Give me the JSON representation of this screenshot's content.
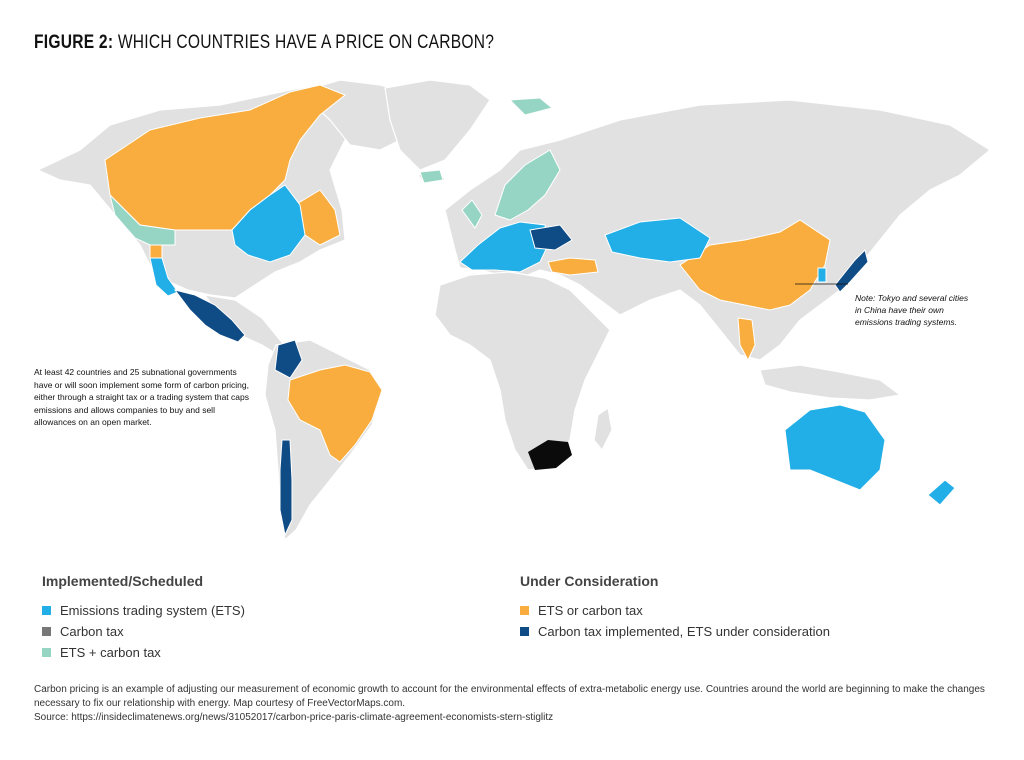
{
  "title": {
    "prefix": "FIGURE 2:",
    "text": "WHICH COUNTRIES HAVE A PRICE ON CARBON?"
  },
  "notes": {
    "right": "Note: Tokyo and several cities in China have their own emissions trading systems.",
    "left": "At least 42 countries and 25 subnational governments have or will soon implement some form of carbon pricing, either through a straight tax or a trading system that caps emissions and allows companies to buy and sell allowances on an open market."
  },
  "legend": {
    "implemented": {
      "heading": "Implemented/Scheduled",
      "items": [
        {
          "label": "Emissions trading system (ETS)",
          "color": "#22aee6"
        },
        {
          "label": "Carbon tax",
          "color": "#777777"
        },
        {
          "label": "ETS + carbon tax",
          "color": "#96d5c3"
        }
      ]
    },
    "consideration": {
      "heading": "Under Consideration",
      "items": [
        {
          "label": "ETS or carbon tax",
          "color": "#f9ad3e"
        },
        {
          "label": "Carbon tax implemented, ETS under consideration",
          "color": "#0f4c86"
        }
      ]
    }
  },
  "footer": {
    "caption": "Carbon pricing is an example of adjusting our measurement of economic growth to account for the environmental effects of extra-metabolic energy use. Countries around the world are beginning to make the changes necessary to fix our relationship with energy. Map courtesy of FreeVectorMaps.com.",
    "source": "Source: https://insideclimatenews.org/news/31052017/carbon-price-paris-climate-agreement-economists-stern-stiglitz"
  },
  "colors": {
    "land": "#e1e1e1",
    "ets": "#22aee6",
    "carbon_tax": "#777777",
    "ets_plus_tax": "#96d5c3",
    "under_consideration": "#f9ad3e",
    "tax_ets_consideration": "#0f4c86"
  }
}
